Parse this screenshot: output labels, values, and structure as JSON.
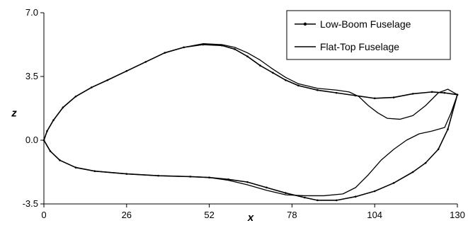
{
  "chart_data": {
    "type": "line",
    "title": "",
    "xlabel": "x",
    "ylabel": "z",
    "xlim": [
      0,
      130
    ],
    "ylim": [
      -3.5,
      7.0
    ],
    "xticks": [
      0,
      26,
      52,
      78,
      104,
      130
    ],
    "yticks": [
      -3.5,
      0.0,
      3.5,
      7.0
    ],
    "xtick_labels": [
      "0",
      "26",
      "52",
      "78",
      "104",
      "130"
    ],
    "ytick_labels": [
      "-3.5",
      "0.0",
      "3.5",
      "7.0"
    ],
    "grid": false,
    "legend_position": "top-right",
    "series": [
      {
        "name": "Low-Boom Fuselage",
        "color": "#000000",
        "marker": "small-dot",
        "upper": [
          [
            0,
            0.0
          ],
          [
            1,
            0.5
          ],
          [
            3,
            1.1
          ],
          [
            6,
            1.8
          ],
          [
            10,
            2.4
          ],
          [
            15,
            2.9
          ],
          [
            20,
            3.3
          ],
          [
            26,
            3.8
          ],
          [
            32,
            4.3
          ],
          [
            38,
            4.8
          ],
          [
            44,
            5.1
          ],
          [
            50,
            5.25
          ],
          [
            56,
            5.2
          ],
          [
            60,
            5.0
          ],
          [
            64,
            4.6
          ],
          [
            68,
            4.1
          ],
          [
            72,
            3.7
          ],
          [
            76,
            3.3
          ],
          [
            80,
            3.0
          ],
          [
            86,
            2.75
          ],
          [
            92,
            2.6
          ],
          [
            98,
            2.45
          ],
          [
            104,
            2.3
          ],
          [
            110,
            2.35
          ],
          [
            116,
            2.55
          ],
          [
            122,
            2.65
          ],
          [
            126,
            2.6
          ],
          [
            130,
            2.5
          ]
        ],
        "lower": [
          [
            0,
            0.0
          ],
          [
            2,
            -0.6
          ],
          [
            5,
            -1.1
          ],
          [
            10,
            -1.5
          ],
          [
            16,
            -1.7
          ],
          [
            26,
            -1.85
          ],
          [
            36,
            -1.95
          ],
          [
            46,
            -2.0
          ],
          [
            52,
            -2.05
          ],
          [
            58,
            -2.15
          ],
          [
            64,
            -2.3
          ],
          [
            70,
            -2.6
          ],
          [
            76,
            -2.9
          ],
          [
            82,
            -3.15
          ],
          [
            86,
            -3.3
          ],
          [
            92,
            -3.3
          ],
          [
            98,
            -3.1
          ],
          [
            104,
            -2.8
          ],
          [
            110,
            -2.35
          ],
          [
            116,
            -1.75
          ],
          [
            120,
            -1.25
          ],
          [
            124,
            -0.5
          ],
          [
            127,
            0.6
          ],
          [
            130,
            2.5
          ]
        ]
      },
      {
        "name": "Flat-Top Fuselage",
        "color": "#000000",
        "marker": "none",
        "upper": [
          [
            0,
            0.0
          ],
          [
            1,
            0.5
          ],
          [
            3,
            1.1
          ],
          [
            6,
            1.8
          ],
          [
            10,
            2.4
          ],
          [
            15,
            2.9
          ],
          [
            20,
            3.3
          ],
          [
            26,
            3.8
          ],
          [
            32,
            4.3
          ],
          [
            38,
            4.8
          ],
          [
            44,
            5.1
          ],
          [
            50,
            5.3
          ],
          [
            56,
            5.25
          ],
          [
            60,
            5.1
          ],
          [
            64,
            4.8
          ],
          [
            68,
            4.4
          ],
          [
            72,
            3.9
          ],
          [
            76,
            3.45
          ],
          [
            80,
            3.1
          ],
          [
            86,
            2.85
          ],
          [
            92,
            2.75
          ],
          [
            96,
            2.65
          ],
          [
            99,
            2.4
          ],
          [
            102,
            1.9
          ],
          [
            105,
            1.5
          ],
          [
            108,
            1.2
          ],
          [
            112,
            1.15
          ],
          [
            116,
            1.35
          ],
          [
            120,
            1.9
          ],
          [
            124,
            2.6
          ],
          [
            127,
            2.8
          ],
          [
            130,
            2.5
          ]
        ],
        "lower": [
          [
            0,
            0.0
          ],
          [
            2,
            -0.6
          ],
          [
            5,
            -1.1
          ],
          [
            10,
            -1.5
          ],
          [
            16,
            -1.7
          ],
          [
            26,
            -1.85
          ],
          [
            36,
            -1.95
          ],
          [
            46,
            -2.0
          ],
          [
            52,
            -2.05
          ],
          [
            58,
            -2.2
          ],
          [
            64,
            -2.45
          ],
          [
            70,
            -2.75
          ],
          [
            76,
            -3.0
          ],
          [
            82,
            -3.05
          ],
          [
            88,
            -3.05
          ],
          [
            94,
            -2.95
          ],
          [
            98,
            -2.6
          ],
          [
            102,
            -1.9
          ],
          [
            106,
            -1.1
          ],
          [
            110,
            -0.5
          ],
          [
            114,
            0.0
          ],
          [
            118,
            0.35
          ],
          [
            122,
            0.5
          ],
          [
            126,
            0.7
          ],
          [
            128,
            1.5
          ],
          [
            130,
            2.5
          ]
        ]
      }
    ]
  }
}
